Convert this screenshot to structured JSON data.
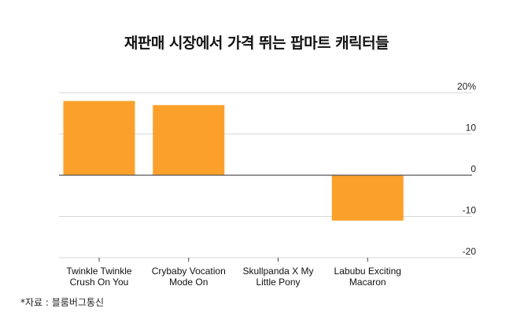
{
  "chart_data": {
    "type": "bar",
    "title": "재판매 시장에서 가격 뛰는 팝마트 캐릭터들",
    "categories": [
      [
        "Twinkle Twinkle",
        "Crush On You"
      ],
      [
        "Crybaby Vocation",
        "Mode On"
      ],
      [
        "Skullpanda X My",
        "Little Pony"
      ],
      [
        "Labubu Exciting",
        "Macaron"
      ]
    ],
    "values": [
      18,
      17,
      0,
      -11
    ],
    "ylim": [
      -20,
      20
    ],
    "yticks": [
      20,
      10,
      0,
      -10,
      -20
    ],
    "ytick_labels": [
      "20%",
      "10",
      "0",
      "-10",
      "-20"
    ],
    "xlabel": "",
    "ylabel": "",
    "grid": true,
    "bar_color": "#FBA12B",
    "source": "*자료 : 블룸버그통신"
  }
}
